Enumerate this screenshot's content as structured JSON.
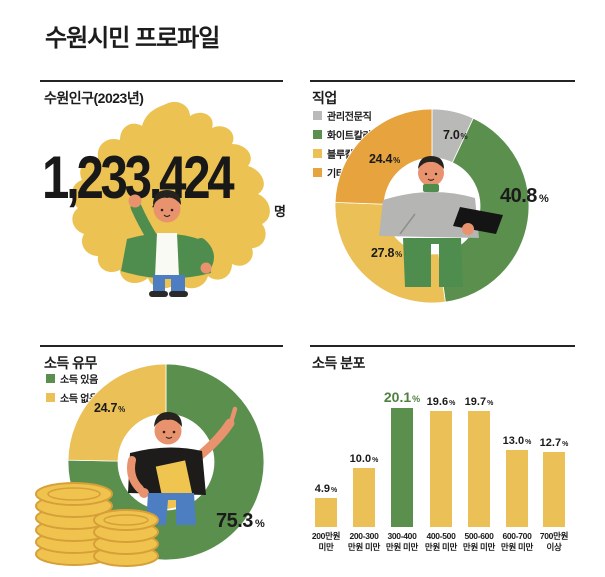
{
  "page": {
    "title": "수원시민 프로파일"
  },
  "percent_sign": "%",
  "colors": {
    "yellow": "#EAC057",
    "green": "#5B8F4E",
    "orange": "#E6A33E",
    "gray": "#B9B9B7",
    "map_yellow": "#ECC352",
    "highlight_label_green": "#4E8040",
    "text": "#1C1C1C"
  },
  "population": {
    "header": "수원인구(2023년)",
    "value": "1,233,424",
    "unit": "명"
  },
  "occupation": {
    "header": "직업",
    "legend": [
      {
        "label": "관리전문직",
        "color": "#B9B9B7"
      },
      {
        "label": "화이트칼라",
        "color": "#5B8F4E"
      },
      {
        "label": "블루칼라",
        "color": "#EAC057"
      },
      {
        "label": "기타",
        "color": "#E6A33E"
      }
    ],
    "value_labels": {
      "gray": "7.0",
      "green": "40.8",
      "yellow": "27.8",
      "orange": "24.4"
    }
  },
  "income_status": {
    "header": "소득 유무",
    "legend": [
      {
        "label": "소득 있음",
        "color": "#5B8F4E"
      },
      {
        "label": "소득 없음",
        "color": "#EAC057"
      }
    ],
    "value_labels": {
      "green": "75.3",
      "yellow": "24.7"
    }
  },
  "income_dist": {
    "header": "소득 분포",
    "value_labels": [
      "4.9",
      "10.0",
      "20.1",
      "19.6",
      "19.7",
      "13.0",
      "12.7"
    ],
    "ticks": [
      [
        "200만원",
        "미만"
      ],
      [
        "200-300",
        "만원 미만"
      ],
      [
        "300-400",
        "만원 미만"
      ],
      [
        "400-500",
        "만원 미만"
      ],
      [
        "500-600",
        "만원 미만"
      ],
      [
        "600-700",
        "만원 미만"
      ],
      [
        "700만원",
        "이상"
      ]
    ]
  },
  "chart_data": [
    {
      "type": "pie",
      "subtype": "donut",
      "title": "직업",
      "labels": [
        "관리전문직",
        "화이트칼라",
        "블루칼라",
        "기타"
      ],
      "values": [
        7.0,
        40.8,
        27.8,
        24.4
      ],
      "colors": [
        "#B9B9B7",
        "#5B8F4E",
        "#EAC057",
        "#E6A33E"
      ],
      "unit": "%",
      "start_angle_deg_from_top": 0,
      "clockwise": true,
      "legend_position": "top-left"
    },
    {
      "type": "pie",
      "subtype": "donut",
      "title": "소득 유무",
      "labels": [
        "소득 있음",
        "소득 없음"
      ],
      "values": [
        75.3,
        24.7
      ],
      "colors": [
        "#5B8F4E",
        "#EAC057"
      ],
      "unit": "%",
      "start_angle_deg_from_top": 0,
      "clockwise": true,
      "legend_position": "top-left"
    },
    {
      "type": "bar",
      "title": "소득 분포",
      "categories": [
        "200만원 미만",
        "200-300 만원 미만",
        "300-400 만원 미만",
        "400-500 만원 미만",
        "500-600 만원 미만",
        "600-700 만원 미만",
        "700만원 이상"
      ],
      "values": [
        4.9,
        10.0,
        20.1,
        19.6,
        19.7,
        13.0,
        12.7
      ],
      "unit": "%",
      "bar_color": "#EAC057",
      "highlight_index": 2,
      "highlight_color": "#5B8F4E",
      "ylim": [
        0,
        22
      ],
      "grid": false
    }
  ]
}
